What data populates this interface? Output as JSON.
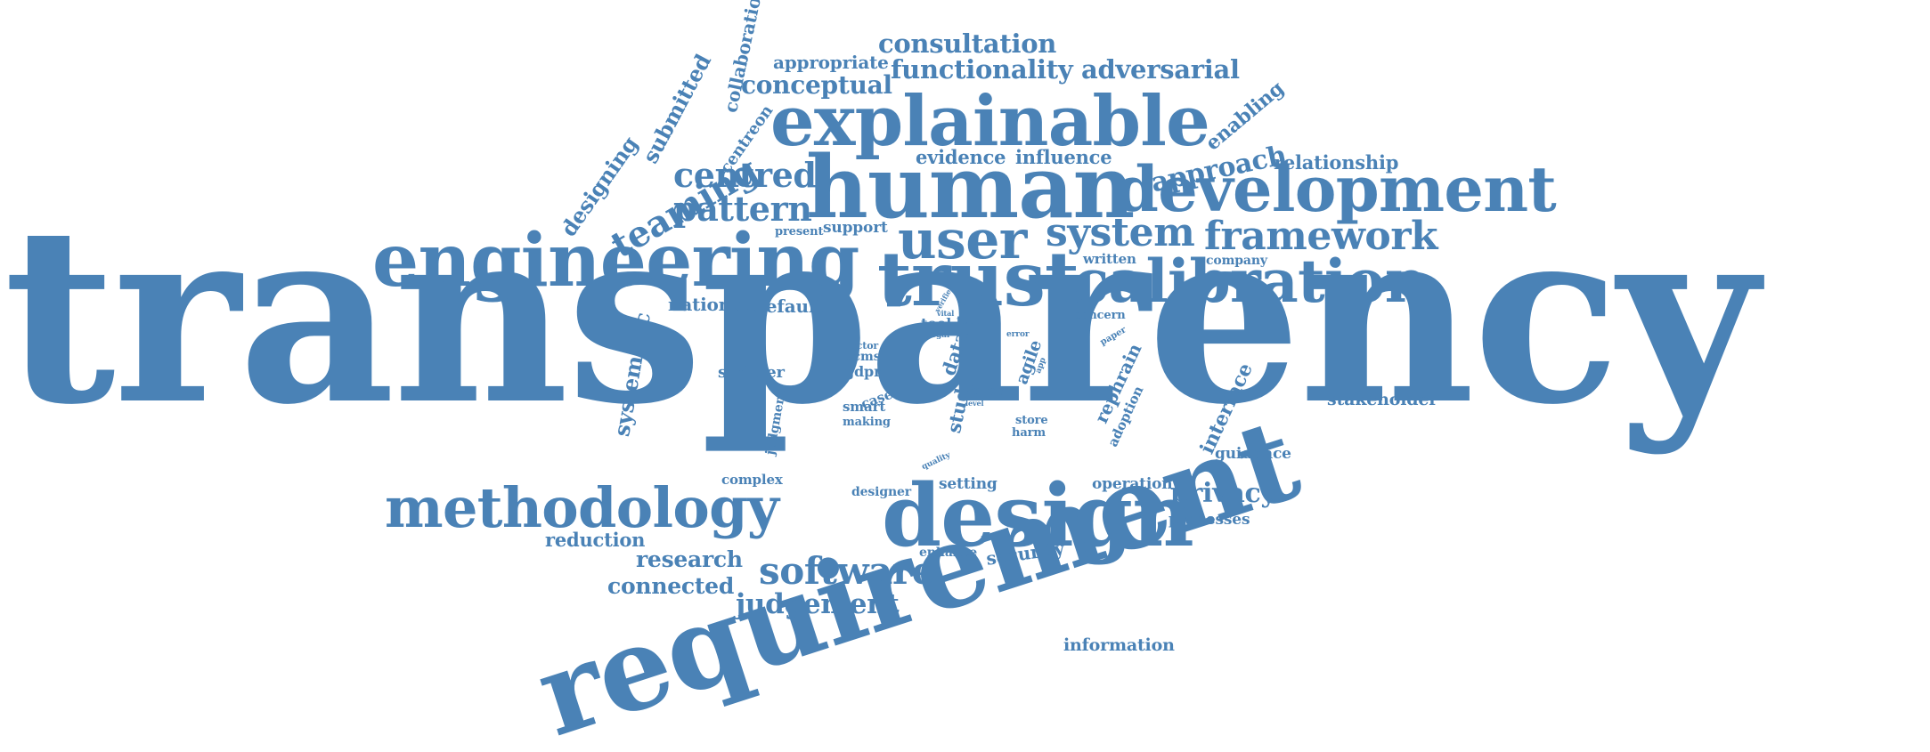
{
  "colors": {
    "word": "#4a82b6",
    "background": "#ffffff"
  },
  "words": [
    {
      "id": "transparency",
      "text": "transparency"
    },
    {
      "id": "requirement",
      "text": "requirement"
    },
    {
      "id": "human",
      "text": "human"
    },
    {
      "id": "explainable",
      "text": "explainable"
    },
    {
      "id": "development",
      "text": "development"
    },
    {
      "id": "engineering",
      "text": "engineering"
    },
    {
      "id": "trust",
      "text": "trust"
    },
    {
      "id": "calibration",
      "text": "calibration"
    },
    {
      "id": "design",
      "text": "design"
    },
    {
      "id": "methodology",
      "text": "methodology"
    },
    {
      "id": "user",
      "text": "user"
    },
    {
      "id": "system",
      "text": "system"
    },
    {
      "id": "framework",
      "text": "framework"
    },
    {
      "id": "software",
      "text": "software"
    },
    {
      "id": "teaming",
      "text": "teaming"
    },
    {
      "id": "consultation",
      "text": "consultation"
    },
    {
      "id": "functionality",
      "text": "functionality"
    },
    {
      "id": "adversarial",
      "text": "adversarial"
    },
    {
      "id": "conceptual",
      "text": "conceptual"
    },
    {
      "id": "appropriate",
      "text": "appropriate"
    },
    {
      "id": "centred",
      "text": "centred"
    },
    {
      "id": "pattern",
      "text": "pattern"
    },
    {
      "id": "approach",
      "text": "approach"
    },
    {
      "id": "evidence",
      "text": "evidence"
    },
    {
      "id": "influence",
      "text": "influence"
    },
    {
      "id": "relationship",
      "text": "relationship"
    },
    {
      "id": "enabling",
      "text": "enabling"
    },
    {
      "id": "collaboration",
      "text": "collaboration"
    },
    {
      "id": "centreon",
      "text": "centreon"
    },
    {
      "id": "submitted",
      "text": "submitted"
    },
    {
      "id": "designing",
      "text": "designing"
    },
    {
      "id": "present",
      "text": "present"
    },
    {
      "id": "support",
      "text": "support"
    },
    {
      "id": "written",
      "text": "written"
    },
    {
      "id": "company",
      "text": "company"
    },
    {
      "id": "national",
      "text": "national"
    },
    {
      "id": "default",
      "text": "default"
    },
    {
      "id": "systematic",
      "text": "systematic"
    },
    {
      "id": "sinister",
      "text": "sinister"
    },
    {
      "id": "judgment",
      "text": "judgment"
    },
    {
      "id": "factor",
      "text": "factor"
    },
    {
      "id": "dcms",
      "text": "dcms"
    },
    {
      "id": "gdpr",
      "text": "gdpr"
    },
    {
      "id": "case",
      "text": "case"
    },
    {
      "id": "smart",
      "text": "smart"
    },
    {
      "id": "making",
      "text": "making"
    },
    {
      "id": "tool",
      "text": "tool"
    },
    {
      "id": "legal",
      "text": "legal"
    },
    {
      "id": "tech",
      "text": "tech"
    },
    {
      "id": "verifier",
      "text": "verifier"
    },
    {
      "id": "vital",
      "text": "vital"
    },
    {
      "id": "data",
      "text": "data"
    },
    {
      "id": "study",
      "text": "study"
    },
    {
      "id": "proc",
      "text": "proc"
    },
    {
      "id": "level",
      "text": "level"
    },
    {
      "id": "store",
      "text": "store"
    },
    {
      "id": "harm",
      "text": "harm"
    },
    {
      "id": "agile",
      "text": "agile"
    },
    {
      "id": "app",
      "text": "app"
    },
    {
      "id": "error",
      "text": "error"
    },
    {
      "id": "concern",
      "text": "concern"
    },
    {
      "id": "paper",
      "text": "paper"
    },
    {
      "id": "rephrain",
      "text": "rephrain"
    },
    {
      "id": "adoption",
      "text": "adoption"
    },
    {
      "id": "interface",
      "text": "interface"
    },
    {
      "id": "stakeholder",
      "text": "stakeholder"
    },
    {
      "id": "guidance",
      "text": "guidance"
    },
    {
      "id": "complex",
      "text": "complex"
    },
    {
      "id": "quality",
      "text": "quality"
    },
    {
      "id": "designer",
      "text": "designer"
    },
    {
      "id": "setting",
      "text": "setting"
    },
    {
      "id": "operation",
      "text": "operation"
    },
    {
      "id": "privacy",
      "text": "privacy"
    },
    {
      "id": "processes",
      "text": "processes"
    },
    {
      "id": "reduction",
      "text": "reduction"
    },
    {
      "id": "research",
      "text": "research"
    },
    {
      "id": "connected",
      "text": "connected"
    },
    {
      "id": "enhance",
      "text": "enhance"
    },
    {
      "id": "security",
      "text": "security"
    },
    {
      "id": "judgement",
      "text": "judgement"
    },
    {
      "id": "information",
      "text": "information"
    }
  ]
}
